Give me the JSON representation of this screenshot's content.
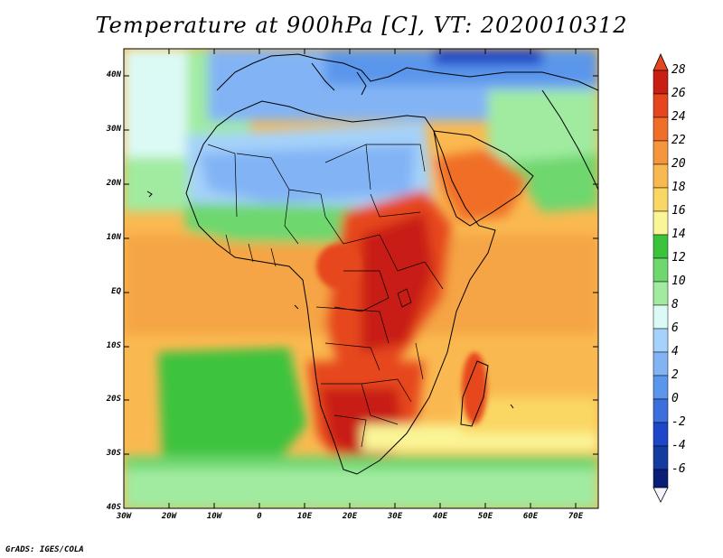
{
  "map": {
    "title": "Temperature at 900hPa [C], VT: 2020010312",
    "credit": "GrADS: IGES/COLA",
    "lat_labels": [
      "40N",
      "30N",
      "20N",
      "10N",
      "EQ",
      "10S",
      "20S",
      "30S",
      "40S"
    ],
    "lon_labels": [
      "30W",
      "20W",
      "10W",
      "0",
      "10E",
      "20E",
      "30E",
      "40E",
      "50E",
      "60E",
      "70E"
    ],
    "extent": {
      "lon_min": -30,
      "lon_max": 75,
      "lat_min": -40,
      "lat_max": 45
    },
    "colorbar": {
      "labels": [
        "28",
        "26",
        "24",
        "22",
        "20",
        "18",
        "16",
        "14",
        "12",
        "10",
        "8",
        "6",
        "4",
        "2",
        "0",
        "-2",
        "-4",
        "-6"
      ],
      "colors": [
        "#f4f4ff",
        "#0a1e78",
        "#1e46c8",
        "#3c6edc",
        "#5a96eb",
        "#82b4f5",
        "#a5d2fa",
        "#dcfaf5",
        "#a0eba0",
        "#6ed76e",
        "#3cc33c",
        "#faf596",
        "#fad764",
        "#fab950",
        "#f5963c",
        "#f06e28",
        "#e6461e",
        "#c81e14",
        "#a01414"
      ]
    },
    "colors": {
      "land_outline": "#000000",
      "ocean_warm": "#fab950",
      "ocean_cool": "#6ed76e"
    }
  }
}
